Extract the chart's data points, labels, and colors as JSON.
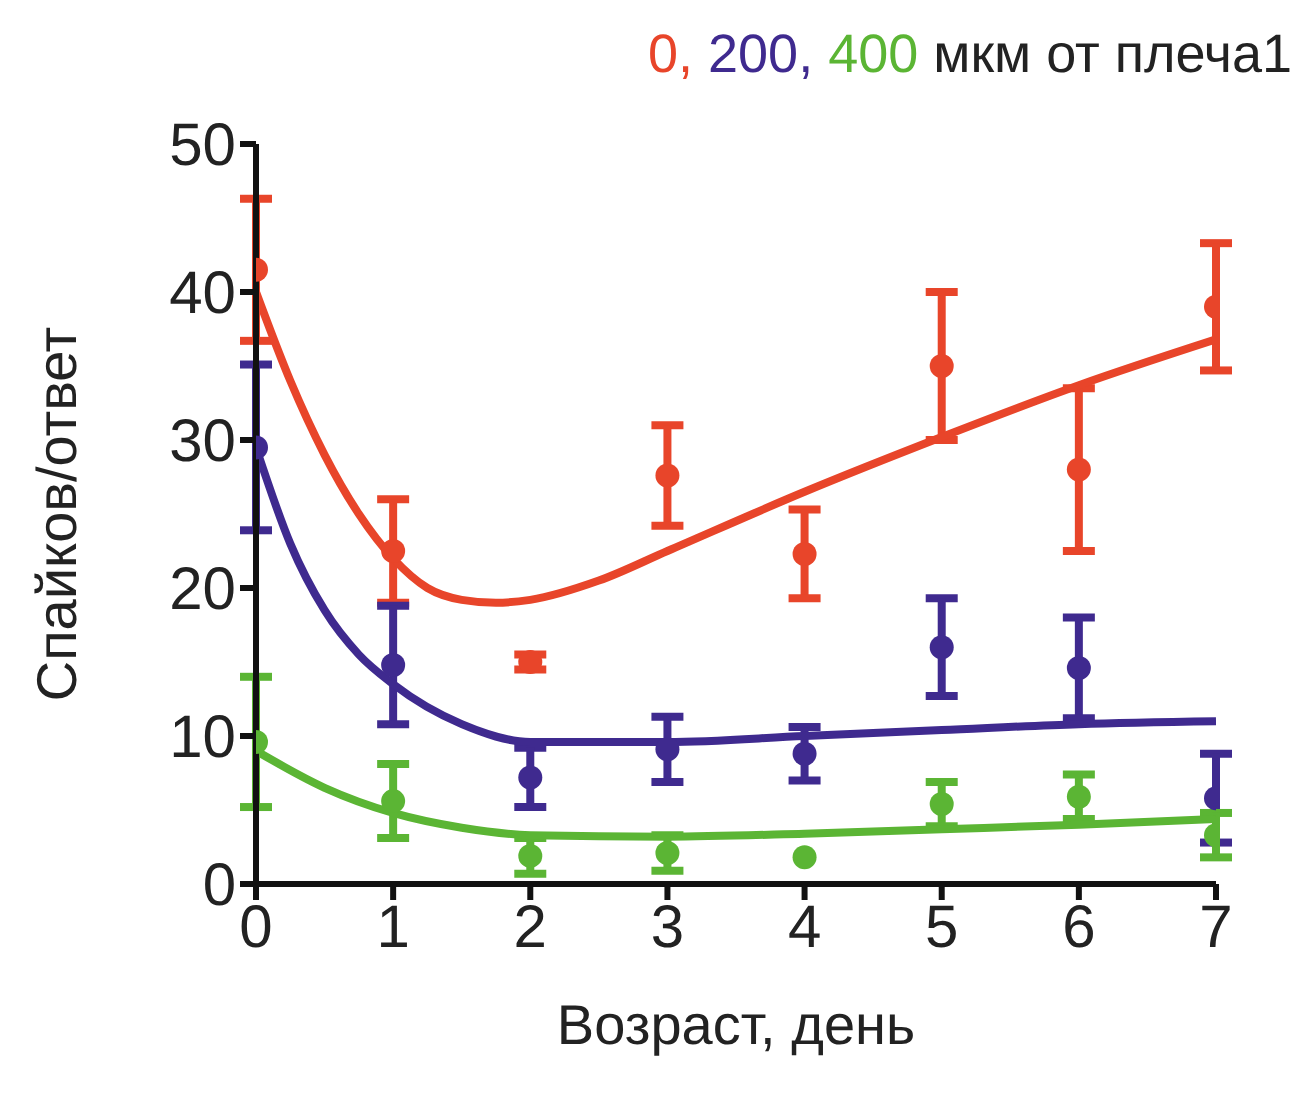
{
  "chart_data": {
    "type": "scatter",
    "title": "мкм от плеча1",
    "xlabel": "Возраст, день",
    "ylabel": "Спайков/ответ",
    "legend": "top",
    "xlim": [
      0,
      7
    ],
    "xticks": [
      0,
      1,
      2,
      3,
      4,
      5,
      6,
      7
    ],
    "ylim": [
      0,
      50
    ],
    "yticks": [
      0,
      10,
      20,
      30,
      40,
      50
    ],
    "x": [
      0,
      1,
      2,
      3,
      4,
      5,
      6,
      7
    ],
    "series": [
      {
        "name": "0,",
        "marker": "circle",
        "color": "#e8452a",
        "values": [
          41.5,
          22.5,
          15,
          27.6,
          22.3,
          35,
          28,
          39
        ],
        "errors": [
          4.8,
          3.5,
          0.5,
          3.4,
          3,
          5,
          5.5,
          4.3
        ]
      },
      {
        "name": "200,",
        "marker": "circle",
        "color": "#3f2a8f",
        "values": [
          29.5,
          14.8,
          7.2,
          9.1,
          8.8,
          16,
          14.6,
          5.8
        ],
        "errors": [
          5.6,
          4,
          2,
          2.2,
          1.8,
          3.3,
          3.4,
          3
        ]
      },
      {
        "name": "400",
        "marker": "circle",
        "color": "#5bb534",
        "values": [
          9.6,
          5.6,
          1.9,
          2.1,
          1.8,
          5.4,
          5.9,
          3.3
        ],
        "errors": [
          4.4,
          2.5,
          1.2,
          1.2,
          null,
          1.5,
          1.5,
          1.5
        ]
      },
      {
        "type": "line",
        "marker": "none",
        "color": "#e8452a",
        "x": [
          0,
          0.25,
          0.5,
          0.75,
          1,
          1.25,
          1.5,
          1.75,
          2,
          2.5,
          3,
          4,
          5,
          6,
          7
        ],
        "values": [
          40,
          34,
          29,
          25,
          22,
          20,
          19.2,
          19,
          19.2,
          20.5,
          22.5,
          26.5,
          30.2,
          33.7,
          36.8
        ]
      },
      {
        "type": "line",
        "marker": "none",
        "color": "#3f2a8f",
        "x": [
          0,
          0.25,
          0.5,
          0.75,
          1,
          1.5,
          2,
          3,
          4,
          5,
          6,
          7
        ],
        "values": [
          29.5,
          23,
          18.5,
          15.5,
          13.5,
          10.8,
          9.6,
          9.6,
          10,
          10.4,
          10.8,
          11
        ]
      },
      {
        "type": "line",
        "marker": "none",
        "color": "#5bb534",
        "x": [
          0,
          0.5,
          1,
          1.5,
          2,
          3,
          4,
          5,
          6,
          7
        ],
        "values": [
          9,
          6.5,
          4.8,
          3.8,
          3.3,
          3.2,
          3.4,
          3.7,
          4,
          4.4
        ]
      }
    ]
  }
}
